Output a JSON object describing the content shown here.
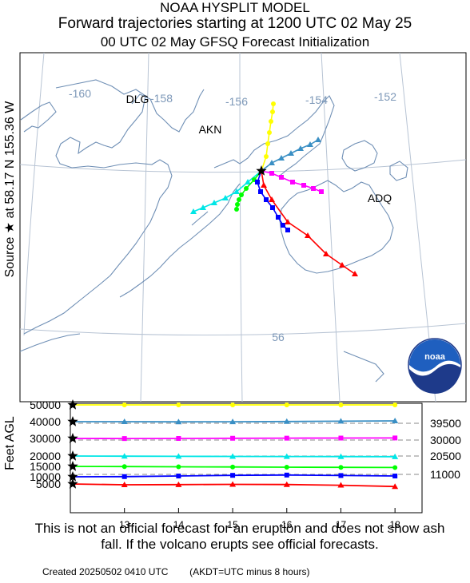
{
  "header": {
    "line1": "NOAA HYSPLIT MODEL",
    "line2": "Forward trajectories starting at 1200 UTC 02 May 25",
    "line3": "00 UTC 02 May     GFSQ  Forecast Initialization"
  },
  "side_label": "Source ★ at  58.17 N  155.36 W",
  "map": {
    "longitude_labels": [
      "-160",
      "-158",
      "-156",
      "-154",
      "-152"
    ],
    "latitude_labels": [
      "56"
    ],
    "places": [
      "DLG",
      "AKN",
      "ADQ"
    ],
    "source": {
      "lat": 58.17,
      "lon": -155.36,
      "marker": "star-icon"
    },
    "logo_text": "noaa",
    "colors": {
      "coast": "#6f8fb5",
      "grid": "#b8c4d4",
      "grid_label": "#7d98b8"
    }
  },
  "chart_data": {
    "type": "line",
    "title": "",
    "ylabel": "Feet AGL",
    "xlabel": "",
    "x": [
      12,
      13,
      14,
      15,
      16,
      17,
      18
    ],
    "x_tick_labels": [
      "13",
      "14",
      "15",
      "16",
      "17",
      "18"
    ],
    "y_tick_labels": [
      "50000",
      "40000",
      "30000",
      "20000",
      "15000",
      "10000",
      "5000"
    ],
    "right_labels": [
      "39500",
      "30000",
      "20500",
      "11000"
    ],
    "series": [
      {
        "start_ft": 50000,
        "color": "#ffff00",
        "marker": "circle",
        "values": [
          50000,
          50000,
          50000,
          50000,
          50000,
          50000,
          50000
        ]
      },
      {
        "start_ft": 40000,
        "color": "#3a8fc4",
        "marker": "triangle",
        "values": [
          40000,
          40000,
          39800,
          39900,
          40200,
          40500,
          40800
        ]
      },
      {
        "start_ft": 30000,
        "color": "#ff00ff",
        "marker": "square",
        "values": [
          30000,
          29900,
          30000,
          30200,
          30300,
          30400,
          30500
        ]
      },
      {
        "start_ft": 20000,
        "color": "#00e6e6",
        "marker": "triangle",
        "values": [
          20000,
          19800,
          19700,
          19600,
          19500,
          19400,
          19300
        ]
      },
      {
        "start_ft": 15000,
        "color": "#00ff00",
        "marker": "circle",
        "values": [
          15000,
          14800,
          14600,
          14400,
          14200,
          14000,
          13800
        ]
      },
      {
        "start_ft": 10000,
        "color": "#0000ff",
        "marker": "square",
        "values": [
          10000,
          10200,
          10800,
          11500,
          11800,
          11300,
          10800
        ]
      },
      {
        "start_ft": 5000,
        "color": "#ff0000",
        "marker": "triangle",
        "values": [
          5000,
          4200,
          4300,
          4600,
          4400,
          3700,
          2300
        ]
      }
    ],
    "reference_levels_ft": [
      39500,
      30000,
      20500,
      11000
    ]
  },
  "footer": {
    "disclaimer": "This is not an official forecast for an eruption and does not show ash fall. If the volcano erupts see official forecasts.",
    "created": "Created 20250502 0410 UTC        (AKDT=UTC minus 8 hours)"
  }
}
